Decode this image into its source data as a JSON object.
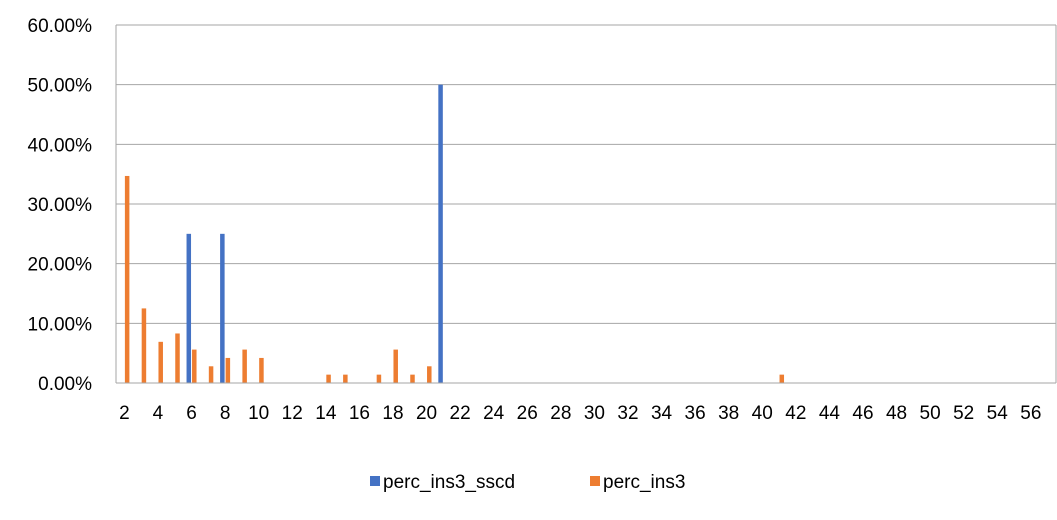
{
  "chart_data": {
    "type": "bar",
    "title": "",
    "xlabel": "",
    "ylabel": "",
    "x": [
      2,
      3,
      4,
      5,
      6,
      7,
      8,
      9,
      10,
      11,
      12,
      13,
      14,
      15,
      16,
      17,
      18,
      19,
      20,
      21,
      22,
      23,
      24,
      25,
      26,
      27,
      28,
      29,
      30,
      31,
      32,
      33,
      34,
      35,
      36,
      37,
      38,
      39,
      40,
      41,
      42,
      43,
      44,
      45,
      46,
      47,
      48,
      49,
      50,
      51,
      52,
      53,
      54,
      55,
      56,
      57
    ],
    "x_tick_labels": [
      "2",
      "4",
      "6",
      "8",
      "10",
      "12",
      "14",
      "16",
      "18",
      "20",
      "22",
      "24",
      "26",
      "28",
      "30",
      "32",
      "34",
      "36",
      "38",
      "40",
      "42",
      "44",
      "46",
      "48",
      "50",
      "52",
      "54",
      "56"
    ],
    "y_tick_labels": [
      "0.00%",
      "10.00%",
      "20.00%",
      "30.00%",
      "40.00%",
      "50.00%",
      "60.00%"
    ],
    "ylim": [
      0,
      0.6
    ],
    "y_format": "percent",
    "grid": true,
    "legend_position": "bottom",
    "series": [
      {
        "name": "perc_ins3_sscd",
        "color": "#4472c4",
        "values": [
          0,
          0,
          0,
          0,
          0.25,
          0,
          0.25,
          0,
          0,
          0,
          0,
          0,
          0,
          0,
          0,
          0,
          0,
          0,
          0,
          0.5,
          0,
          0,
          0,
          0,
          0,
          0,
          0,
          0,
          0,
          0,
          0,
          0,
          0,
          0,
          0,
          0,
          0,
          0,
          0,
          0,
          0,
          0,
          0,
          0,
          0,
          0,
          0,
          0,
          0,
          0,
          0,
          0,
          0,
          0,
          0,
          0
        ]
      },
      {
        "name": "perc_ins3",
        "color": "#ed7d31",
        "values": [
          0.347,
          0.125,
          0.069,
          0.083,
          0.056,
          0.028,
          0.042,
          0.056,
          0.042,
          0,
          0,
          0,
          0.014,
          0.014,
          0,
          0.014,
          0.056,
          0.014,
          0.028,
          0,
          0,
          0,
          0,
          0,
          0,
          0,
          0,
          0,
          0,
          0,
          0,
          0,
          0,
          0,
          0,
          0,
          0,
          0,
          0,
          0.014,
          0,
          0,
          0,
          0,
          0,
          0,
          0,
          0,
          0,
          0,
          0,
          0,
          0,
          0,
          0,
          0
        ]
      }
    ]
  }
}
